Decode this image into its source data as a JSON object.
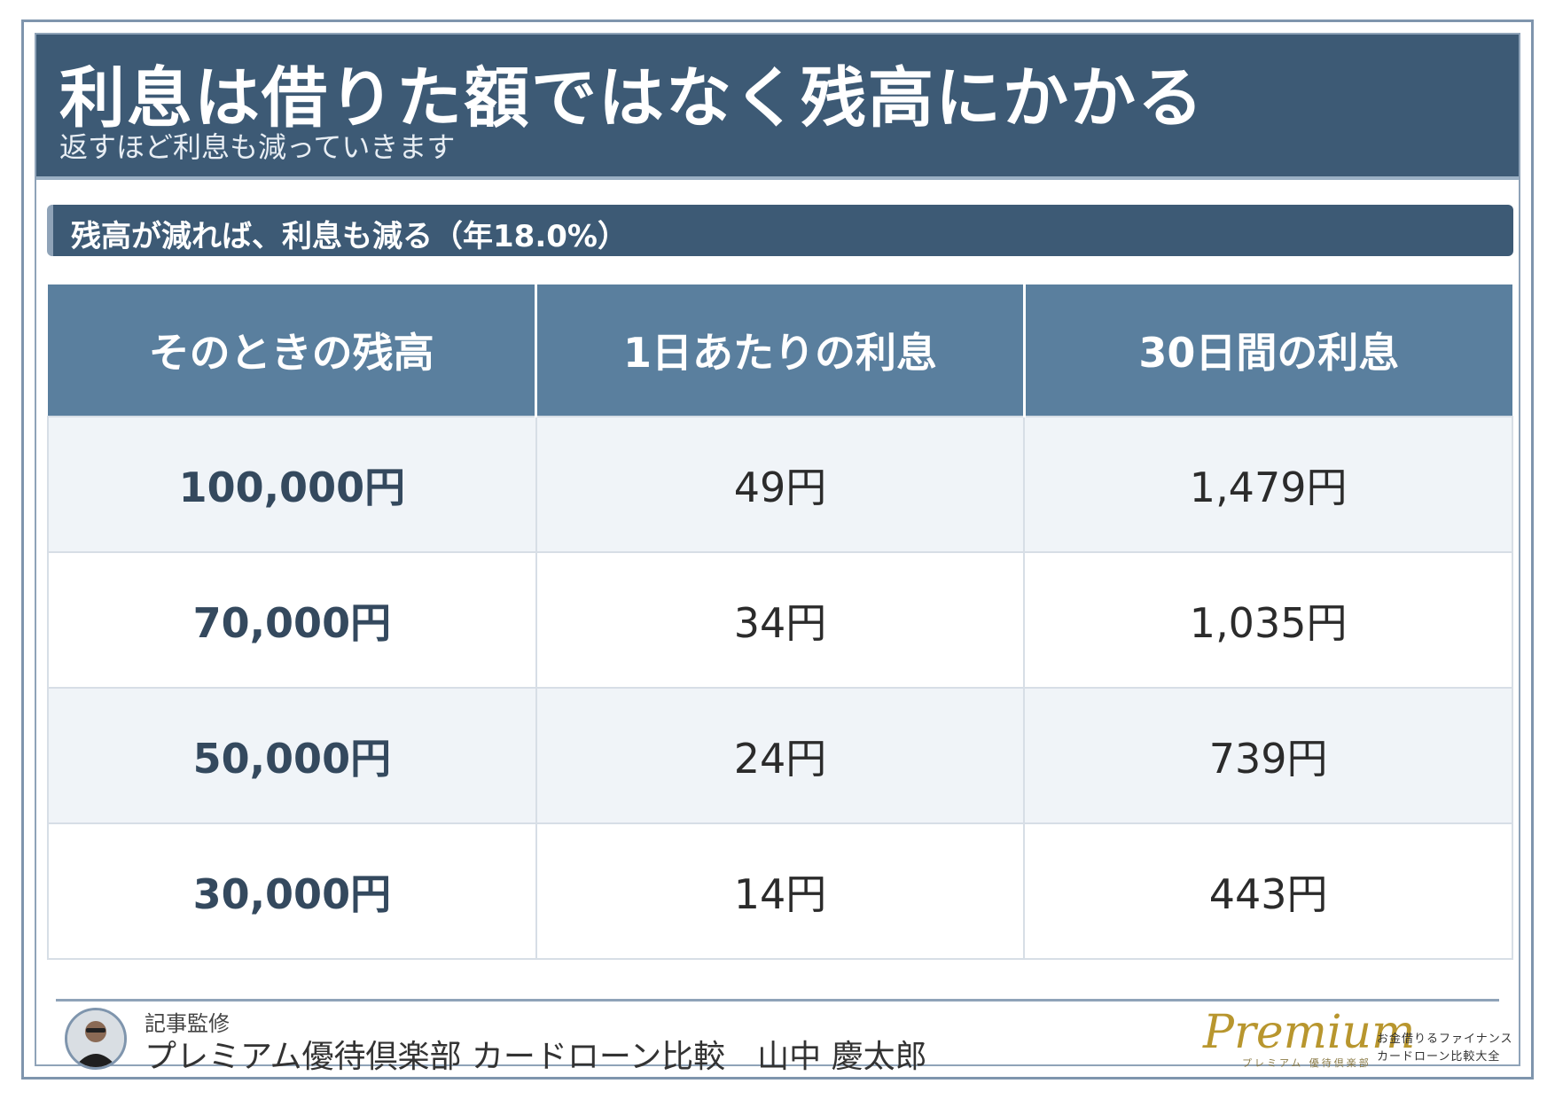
{
  "header": {
    "title": "利息は借りた額ではなく残高にかかる",
    "subtitle": "返すほど利息も減っていきます"
  },
  "section": {
    "label": "残高が減れば、利息も減る（年18.0%）"
  },
  "table": {
    "headers": [
      "そのときの残高",
      "1日あたりの利息",
      "30日間の利息"
    ],
    "rows": [
      [
        "100,000円",
        "49円",
        "1,479円"
      ],
      [
        "70,000円",
        "34円",
        "1,035円"
      ],
      [
        "50,000円",
        "24円",
        "739円"
      ],
      [
        "30,000円",
        "14円",
        "443円"
      ]
    ]
  },
  "footer": {
    "supervise_label": "記事監修",
    "supervisor": "プレミアム優待倶楽部 カードローン比較　山中 慶太郎",
    "logo": {
      "script": "Premium",
      "sub": "プレミアム 優待倶楽部",
      "tagline1": "お金借りるファイナンス",
      "tagline2": "カードローン比較大全"
    }
  },
  "colors": {
    "header_bg": "#3d5a75",
    "table_header_bg": "#5a7f9e",
    "row_alt_bg": "#f0f4f8",
    "frame_border": "#7f95ad",
    "logo_gold": "#b8962e"
  }
}
